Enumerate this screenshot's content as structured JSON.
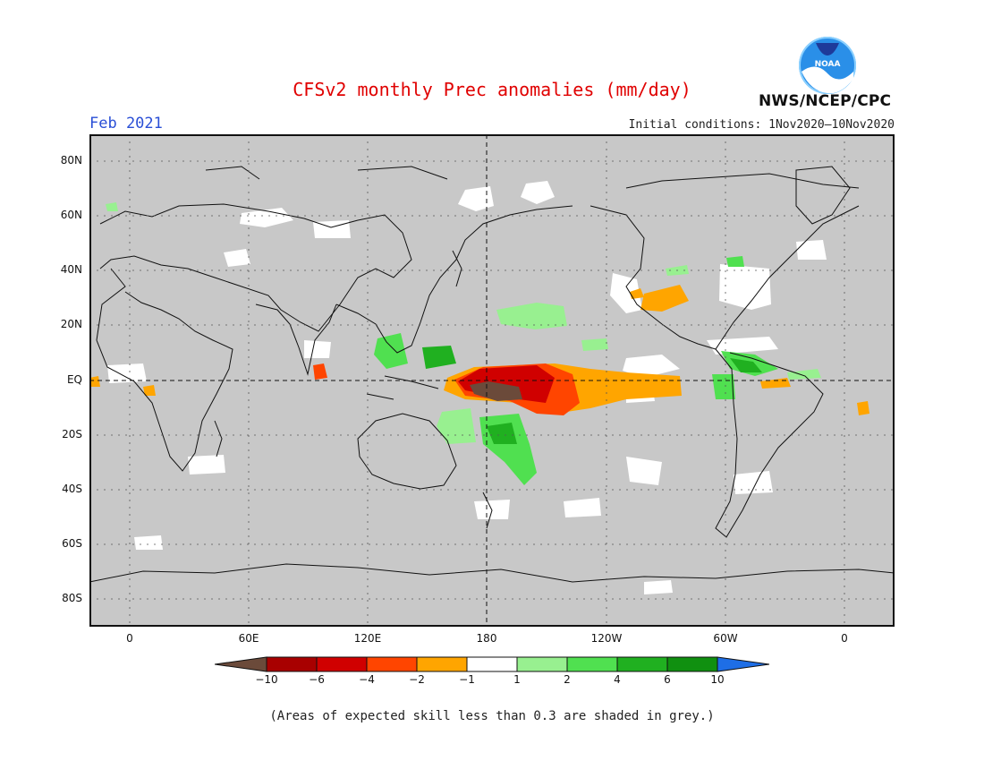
{
  "header": {
    "title": "CFSv2 monthly Prec anomalies (mm/day)",
    "agency": "NWS/NCEP/CPC",
    "logo_text": "NOAA",
    "forecast_month": "Feb 2021",
    "initial_conditions": "Initial conditions: 1Nov2020—10Nov2020"
  },
  "map": {
    "lat_ticks": [
      "80N",
      "60N",
      "40N",
      "20N",
      "EQ",
      "20S",
      "40S",
      "60S",
      "80S"
    ],
    "lon_ticks": [
      "0",
      "60E",
      "120E",
      "180",
      "120W",
      "60W",
      "0"
    ],
    "background_color": "#c8c8c8"
  },
  "legend": {
    "tick_labels": [
      "−10",
      "−6",
      "−4",
      "−2",
      "−1",
      "1",
      "2",
      "4",
      "6",
      "10"
    ],
    "colors": [
      "#6b4a3a",
      "#a80000",
      "#d00000",
      "#ff4500",
      "#ffa500",
      "#ffffff",
      "#98f090",
      "#50e050",
      "#20b020",
      "#109010",
      "#1e6ee6"
    ]
  },
  "footnote": "(Areas of expected skill less than 0.3 are shaded in grey.)"
}
